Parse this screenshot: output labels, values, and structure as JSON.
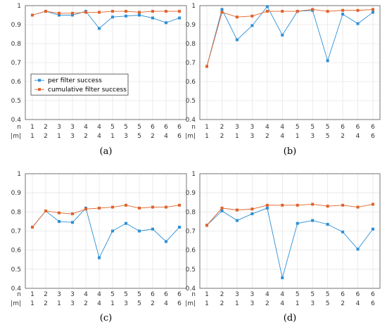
{
  "colors": {
    "per_filter": "#2d8fd5",
    "cumulative": "#e0622a",
    "grid": "#e6e6e6",
    "axis": "#555555"
  },
  "row_labels": {
    "n": "n",
    "m": "|m|"
  },
  "chart_data": [
    {
      "type": "line",
      "panel": "(a)",
      "n": [
        "1",
        "2",
        "3",
        "3",
        "4",
        "4",
        "5",
        "5",
        "5",
        "6",
        "6",
        "6"
      ],
      "m": [
        "1",
        "2",
        "1",
        "3",
        "2",
        "4",
        "1",
        "3",
        "5",
        "2",
        "4",
        "6"
      ],
      "ylim": [
        0.4,
        1.0
      ],
      "yticks": [
        "0.4",
        "0.5",
        "0.6",
        "0.7",
        "0.8",
        "0.9",
        "1"
      ],
      "grid": true,
      "legend": {
        "placement": "middle-left",
        "entries": [
          "per filter success",
          "cumulative filter success"
        ]
      },
      "series": [
        {
          "name": "per filter success",
          "values": [
            0.95,
            0.97,
            0.95,
            0.95,
            0.97,
            0.88,
            0.94,
            0.945,
            0.95,
            0.935,
            0.91,
            0.935
          ]
        },
        {
          "name": "cumulative filter success",
          "values": [
            0.95,
            0.97,
            0.96,
            0.96,
            0.965,
            0.965,
            0.97,
            0.97,
            0.965,
            0.97,
            0.97,
            0.97
          ]
        }
      ]
    },
    {
      "type": "line",
      "panel": "(b)",
      "n": [
        "1",
        "2",
        "3",
        "3",
        "4",
        "4",
        "5",
        "5",
        "5",
        "6",
        "6",
        "6"
      ],
      "m": [
        "1",
        "2",
        "1",
        "3",
        "2",
        "4",
        "1",
        "3",
        "5",
        "2",
        "4",
        "6"
      ],
      "ylim": [
        0.4,
        1.0
      ],
      "yticks": [
        "0.4",
        "0.5",
        "0.6",
        "0.7",
        "0.8",
        "0.9",
        "1"
      ],
      "grid": true,
      "series": [
        {
          "name": "per filter success",
          "values": [
            0.68,
            0.98,
            0.82,
            0.895,
            0.995,
            0.845,
            0.97,
            0.975,
            0.71,
            0.955,
            0.905,
            0.965
          ]
        },
        {
          "name": "cumulative filter success",
          "values": [
            0.68,
            0.965,
            0.94,
            0.945,
            0.97,
            0.97,
            0.97,
            0.98,
            0.97,
            0.975,
            0.975,
            0.98
          ]
        }
      ]
    },
    {
      "type": "line",
      "panel": "(c)",
      "n": [
        "1",
        "2",
        "3",
        "3",
        "4",
        "4",
        "5",
        "5",
        "5",
        "6",
        "6",
        "6"
      ],
      "m": [
        "1",
        "2",
        "1",
        "3",
        "2",
        "4",
        "1",
        "3",
        "5",
        "2",
        "4",
        "6"
      ],
      "ylim": [
        0.4,
        1.0
      ],
      "yticks": [
        "0.4",
        "0.5",
        "0.6",
        "0.7",
        "0.8",
        "0.9",
        "1"
      ],
      "grid": true,
      "series": [
        {
          "name": "per filter success",
          "values": [
            0.72,
            0.805,
            0.75,
            0.745,
            0.82,
            0.56,
            0.7,
            0.74,
            0.7,
            0.71,
            0.645,
            0.72
          ]
        },
        {
          "name": "cumulative filter success",
          "values": [
            0.72,
            0.805,
            0.795,
            0.79,
            0.815,
            0.82,
            0.825,
            0.835,
            0.82,
            0.825,
            0.825,
            0.835
          ]
        }
      ]
    },
    {
      "type": "line",
      "panel": "(d)",
      "n": [
        "1",
        "2",
        "3",
        "3",
        "4",
        "4",
        "5",
        "5",
        "5",
        "6",
        "6",
        "6"
      ],
      "m": [
        "1",
        "2",
        "1",
        "3",
        "2",
        "4",
        "1",
        "3",
        "5",
        "2",
        "4",
        "6"
      ],
      "ylim": [
        0.4,
        1.0
      ],
      "yticks": [
        "0.4",
        "0.5",
        "0.6",
        "0.7",
        "0.8",
        "0.9",
        "1"
      ],
      "grid": true,
      "series": [
        {
          "name": "per filter success",
          "values": [
            0.73,
            0.805,
            0.755,
            0.79,
            0.82,
            0.455,
            0.74,
            0.755,
            0.735,
            0.695,
            0.605,
            0.71
          ]
        },
        {
          "name": "cumulative filter success",
          "values": [
            0.73,
            0.82,
            0.81,
            0.815,
            0.835,
            0.835,
            0.835,
            0.84,
            0.83,
            0.835,
            0.825,
            0.84
          ]
        }
      ]
    }
  ]
}
